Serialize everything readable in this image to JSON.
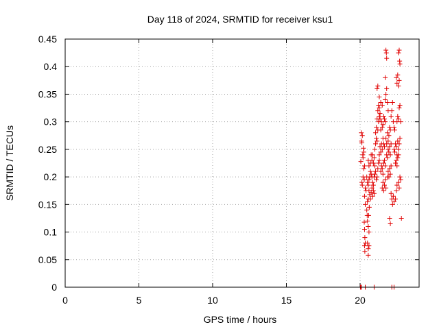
{
  "chart_data": {
    "type": "scatter",
    "title": "Day 118 of 2024, SRMTID for receiver ksu1",
    "xlabel": "GPS time / hours",
    "ylabel": "SRMTID / TECUs",
    "xlim": [
      0,
      24
    ],
    "ylim": [
      0,
      0.45
    ],
    "xticks": [
      0,
      5,
      10,
      15,
      20
    ],
    "xtick_labels": [
      "0",
      "5",
      "10",
      "15",
      "20"
    ],
    "yticks": [
      0,
      0.05,
      0.1,
      0.15,
      0.2,
      0.25,
      0.3,
      0.35,
      0.4,
      0.45
    ],
    "ytick_labels": [
      "0",
      "0.05",
      "0.1",
      "0.15",
      "0.2",
      "0.25",
      "0.3",
      "0.35",
      "0.4",
      "0.45"
    ],
    "grid": true,
    "marker": "+",
    "marker_color": "#e00000",
    "series": [
      {
        "points": [
          [
            20.02,
            0.0
          ],
          [
            20.05,
            0.0
          ],
          [
            20.08,
            0.0
          ],
          [
            20.35,
            0.0
          ],
          [
            20.95,
            0.0
          ],
          [
            22.3,
            0.0
          ],
          [
            22.15,
            0.0
          ],
          [
            20.08,
            0.28
          ],
          [
            20.1,
            0.265
          ],
          [
            20.12,
            0.262
          ],
          [
            20.15,
            0.275
          ],
          [
            20.05,
            0.228
          ],
          [
            20.18,
            0.24
          ],
          [
            20.2,
            0.235
          ],
          [
            20.22,
            0.252
          ],
          [
            20.25,
            0.245
          ],
          [
            20.12,
            0.19
          ],
          [
            20.15,
            0.185
          ],
          [
            20.2,
            0.2
          ],
          [
            20.25,
            0.215
          ],
          [
            20.3,
            0.22
          ],
          [
            20.28,
            0.195
          ],
          [
            20.35,
            0.18
          ],
          [
            20.4,
            0.175
          ],
          [
            20.3,
            0.165
          ],
          [
            20.35,
            0.15
          ],
          [
            20.28,
            0.118
          ],
          [
            20.3,
            0.105
          ],
          [
            20.32,
            0.09
          ],
          [
            20.35,
            0.08
          ],
          [
            20.3,
            0.075
          ],
          [
            20.32,
            0.065
          ],
          [
            20.45,
            0.14
          ],
          [
            20.5,
            0.155
          ],
          [
            20.55,
            0.16
          ],
          [
            20.48,
            0.13
          ],
          [
            20.5,
            0.12
          ],
          [
            20.55,
            0.11
          ],
          [
            20.6,
            0.1
          ],
          [
            20.58,
            0.13
          ],
          [
            20.62,
            0.145
          ],
          [
            20.5,
            0.08
          ],
          [
            20.55,
            0.07
          ],
          [
            20.6,
            0.075
          ],
          [
            20.55,
            0.058
          ],
          [
            20.45,
            0.2
          ],
          [
            20.5,
            0.19
          ],
          [
            20.55,
            0.185
          ],
          [
            20.6,
            0.195
          ],
          [
            20.65,
            0.2
          ],
          [
            20.7,
            0.21
          ],
          [
            20.75,
            0.205
          ],
          [
            20.8,
            0.2
          ],
          [
            20.85,
            0.19
          ],
          [
            20.9,
            0.185
          ],
          [
            20.55,
            0.23
          ],
          [
            20.6,
            0.22
          ],
          [
            20.7,
            0.225
          ],
          [
            20.75,
            0.24
          ],
          [
            20.8,
            0.23
          ],
          [
            20.85,
            0.24
          ],
          [
            20.9,
            0.225
          ],
          [
            20.95,
            0.235
          ],
          [
            21.0,
            0.22
          ],
          [
            20.6,
            0.175
          ],
          [
            20.65,
            0.168
          ],
          [
            20.7,
            0.16
          ],
          [
            20.75,
            0.172
          ],
          [
            20.8,
            0.18
          ],
          [
            20.85,
            0.165
          ],
          [
            20.9,
            0.175
          ],
          [
            20.95,
            0.17
          ],
          [
            20.95,
            0.2
          ],
          [
            21.0,
            0.205
          ],
          [
            21.05,
            0.21
          ],
          [
            21.1,
            0.195
          ],
          [
            21.15,
            0.2
          ],
          [
            21.2,
            0.215
          ],
          [
            21.25,
            0.225
          ],
          [
            21.3,
            0.23
          ],
          [
            21.0,
            0.25
          ],
          [
            21.05,
            0.26
          ],
          [
            21.1,
            0.27
          ],
          [
            21.15,
            0.265
          ],
          [
            21.2,
            0.285
          ],
          [
            21.25,
            0.3
          ],
          [
            21.3,
            0.31
          ],
          [
            21.35,
            0.305
          ],
          [
            21.05,
            0.28
          ],
          [
            21.1,
            0.29
          ],
          [
            21.15,
            0.305
          ],
          [
            21.2,
            0.32
          ],
          [
            21.25,
            0.33
          ],
          [
            21.3,
            0.325
          ],
          [
            21.35,
            0.315
          ],
          [
            21.15,
            0.36
          ],
          [
            21.2,
            0.365
          ],
          [
            21.3,
            0.345
          ],
          [
            21.4,
            0.335
          ],
          [
            21.5,
            0.33
          ],
          [
            21.3,
            0.24
          ],
          [
            21.35,
            0.255
          ],
          [
            21.4,
            0.245
          ],
          [
            21.45,
            0.26
          ],
          [
            21.5,
            0.25
          ],
          [
            21.55,
            0.27
          ],
          [
            21.6,
            0.26
          ],
          [
            21.65,
            0.255
          ],
          [
            21.4,
            0.285
          ],
          [
            21.45,
            0.3
          ],
          [
            21.5,
            0.29
          ],
          [
            21.55,
            0.295
          ],
          [
            21.6,
            0.31
          ],
          [
            21.65,
            0.305
          ],
          [
            21.7,
            0.3
          ],
          [
            21.4,
            0.21
          ],
          [
            21.45,
            0.22
          ],
          [
            21.5,
            0.215
          ],
          [
            21.55,
            0.205
          ],
          [
            21.6,
            0.225
          ],
          [
            21.65,
            0.23
          ],
          [
            21.7,
            0.22
          ],
          [
            21.5,
            0.18
          ],
          [
            21.55,
            0.19
          ],
          [
            21.6,
            0.175
          ],
          [
            21.65,
            0.185
          ],
          [
            21.7,
            0.195
          ],
          [
            21.75,
            0.18
          ],
          [
            21.7,
            0.34
          ],
          [
            21.75,
            0.35
          ],
          [
            21.8,
            0.36
          ],
          [
            21.85,
            0.335
          ],
          [
            21.9,
            0.32
          ],
          [
            21.75,
            0.43
          ],
          [
            21.78,
            0.425
          ],
          [
            21.8,
            0.415
          ],
          [
            21.7,
            0.38
          ],
          [
            21.75,
            0.27
          ],
          [
            21.8,
            0.26
          ],
          [
            21.85,
            0.28
          ],
          [
            21.9,
            0.265
          ],
          [
            21.95,
            0.275
          ],
          [
            22.0,
            0.29
          ],
          [
            22.05,
            0.285
          ],
          [
            21.8,
            0.24
          ],
          [
            21.85,
            0.235
          ],
          [
            21.9,
            0.25
          ],
          [
            21.95,
            0.245
          ],
          [
            22.0,
            0.255
          ],
          [
            22.05,
            0.24
          ],
          [
            22.1,
            0.26
          ],
          [
            21.85,
            0.2
          ],
          [
            21.9,
            0.21
          ],
          [
            21.95,
            0.2
          ],
          [
            22.0,
            0.215
          ],
          [
            22.05,
            0.205
          ],
          [
            22.1,
            0.22
          ],
          [
            22.0,
            0.125
          ],
          [
            22.05,
            0.115
          ],
          [
            22.1,
            0.17
          ],
          [
            22.15,
            0.16
          ],
          [
            22.2,
            0.15
          ],
          [
            22.25,
            0.165
          ],
          [
            22.3,
            0.155
          ],
          [
            22.1,
            0.31
          ],
          [
            22.15,
            0.32
          ],
          [
            22.2,
            0.335
          ],
          [
            22.25,
            0.3
          ],
          [
            22.3,
            0.29
          ],
          [
            22.35,
            0.285
          ],
          [
            22.3,
            0.25
          ],
          [
            22.35,
            0.245
          ],
          [
            22.4,
            0.26
          ],
          [
            22.45,
            0.255
          ],
          [
            22.5,
            0.24
          ],
          [
            22.55,
            0.265
          ],
          [
            22.6,
            0.25
          ],
          [
            22.4,
            0.225
          ],
          [
            22.45,
            0.23
          ],
          [
            22.5,
            0.22
          ],
          [
            22.55,
            0.235
          ],
          [
            22.6,
            0.24
          ],
          [
            22.65,
            0.26
          ],
          [
            22.7,
            0.27
          ],
          [
            22.45,
            0.38
          ],
          [
            22.5,
            0.37
          ],
          [
            22.55,
            0.385
          ],
          [
            22.6,
            0.365
          ],
          [
            22.65,
            0.375
          ],
          [
            22.6,
            0.425
          ],
          [
            22.65,
            0.43
          ],
          [
            22.7,
            0.405
          ],
          [
            22.68,
            0.41
          ],
          [
            22.5,
            0.3
          ],
          [
            22.55,
            0.31
          ],
          [
            22.6,
            0.305
          ],
          [
            22.65,
            0.325
          ],
          [
            22.7,
            0.33
          ],
          [
            22.75,
            0.3
          ],
          [
            22.6,
            0.19
          ],
          [
            22.65,
            0.18
          ],
          [
            22.7,
            0.2
          ],
          [
            22.75,
            0.195
          ],
          [
            22.8,
            0.125
          ],
          [
            22.4,
            0.16
          ],
          [
            22.45,
            0.175
          ],
          [
            22.5,
            0.185
          ]
        ]
      }
    ]
  }
}
